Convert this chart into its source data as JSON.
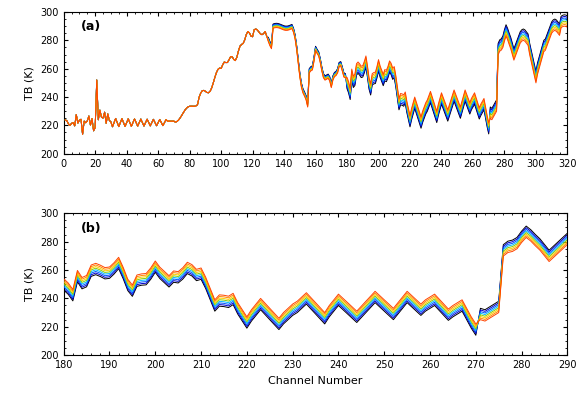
{
  "title_a": "(a)",
  "title_b": "(b)",
  "ylabel": "TB (K)",
  "xlabel": "Channel Number",
  "ylim": [
    200,
    300
  ],
  "yticks": [
    200,
    220,
    240,
    260,
    280,
    300
  ],
  "xlim_a": [
    0,
    320
  ],
  "xticks_a": [
    0,
    20,
    40,
    60,
    80,
    100,
    120,
    140,
    160,
    180,
    200,
    220,
    240,
    260,
    280,
    300,
    320
  ],
  "xlim_b": [
    180,
    290
  ],
  "xticks_b": [
    180,
    190,
    200,
    210,
    220,
    230,
    240,
    250,
    260,
    270,
    280,
    290
  ],
  "n_profiles": 8,
  "colors": [
    "#FF4400",
    "#FF8800",
    "#FFCC00",
    "#88CC00",
    "#00BBFF",
    "#0055FF",
    "#0000CC",
    "#000000"
  ],
  "bg_color": "#FFFFFF",
  "line_width": 0.7
}
